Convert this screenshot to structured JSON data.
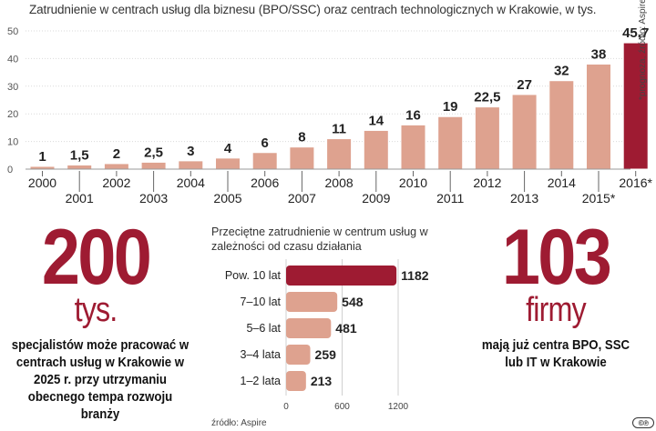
{
  "title": "Zatrudnienie w centrach usług dla biznesu (BPO/SSC)  oraz centrach technologicznych w Krakowie, w tys.",
  "footnote": "*prognoza, źródło: Aspire",
  "colors": {
    "bar": "#dea28f",
    "highlight": "#9e1b32",
    "accent": "#9e1b32"
  },
  "chart_data": [
    {
      "type": "bar",
      "title": "Zatrudnienie w centrach usług dla biznesu (BPO/SSC)  oraz centrach technologicznych w Krakowie, w tys.",
      "categories": [
        "2000",
        "2001",
        "2002",
        "2003",
        "2004",
        "2005",
        "2006",
        "2007",
        "2008",
        "2009",
        "2010",
        "2011",
        "2012",
        "2013",
        "2014",
        "2015*",
        "2016*"
      ],
      "values": [
        1,
        1.5,
        2,
        2.5,
        3,
        4,
        6,
        8,
        11,
        14,
        16,
        19,
        22.5,
        27,
        32,
        38,
        45.7
      ],
      "value_labels": [
        "1",
        "1,5",
        "2",
        "2,5",
        "3",
        "4",
        "6",
        "8",
        "11",
        "14",
        "16",
        "19",
        "22,5",
        "27",
        "32",
        "38",
        "45,7"
      ],
      "highlight_index": 16,
      "yticks": [
        0,
        10,
        20,
        30,
        40,
        50
      ],
      "ylim": [
        0,
        50
      ],
      "xlabel": "",
      "ylabel": ""
    },
    {
      "type": "bar",
      "orientation": "horizontal",
      "title": "Przeciętne zatrudnienie w centrum usług w zależności od czasu działania",
      "categories": [
        "Pow. 10 lat",
        "7–10 lat",
        "5–6 lat",
        "3–4 lata",
        "1–2 lata"
      ],
      "values": [
        1182,
        548,
        481,
        259,
        213
      ],
      "value_labels": [
        "1182",
        "548",
        "481",
        "259",
        "213"
      ],
      "highlight_index": 0,
      "xticks": [
        0,
        600,
        1200
      ],
      "xlim": [
        0,
        1200
      ]
    }
  ],
  "inset": {
    "title": "Przeciętne zatrudnienie w centrum usług w zależności od czasu działania",
    "source": "źródło: Aspire"
  },
  "left_stat": {
    "number": "200",
    "unit": "tys.",
    "description": "specjalistów może pracować w centrach usług w Krakowie w 2025 r. przy utrzymaniu obecnego tempa rozwoju branży"
  },
  "right_stat": {
    "number": "103",
    "unit": "firmy",
    "description": "mają już centra BPO, SSC lub IT w Krakowie"
  },
  "license_badge": "©℗"
}
